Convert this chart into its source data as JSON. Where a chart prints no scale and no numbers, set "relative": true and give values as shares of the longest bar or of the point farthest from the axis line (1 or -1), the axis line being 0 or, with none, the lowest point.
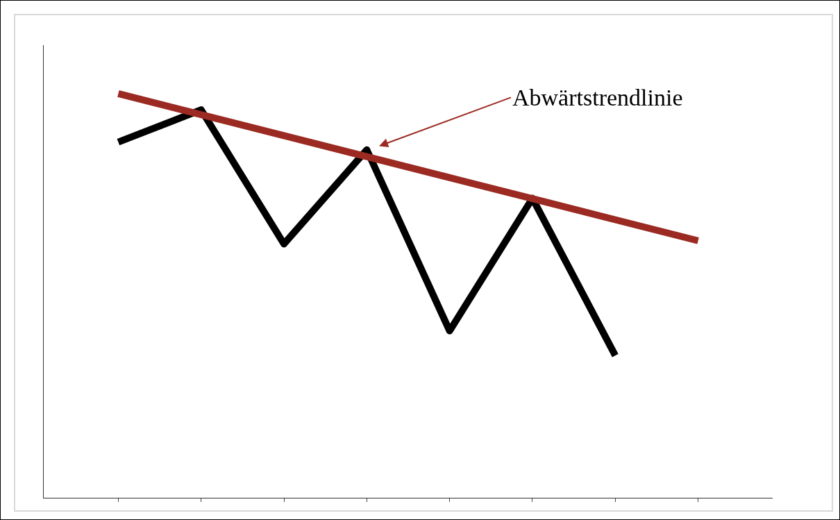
{
  "chart_data": {
    "type": "line",
    "relative": true,
    "categories": [
      null,
      null,
      null,
      null,
      null,
      null,
      null,
      null
    ],
    "series": [
      {
        "color": "#000000",
        "values": [
          0.88,
          0.96,
          0.628,
          0.861,
          0.413,
          0.741,
          0.352,
          null
        ]
      },
      {
        "color": "#9b2a22",
        "values": [
          1,
          0.948,
          0.896,
          0.844,
          0.792,
          0.74,
          0.688,
          0.636
        ]
      }
    ],
    "annotations": [
      "Abwärtstrendlinie"
    ]
  }
}
